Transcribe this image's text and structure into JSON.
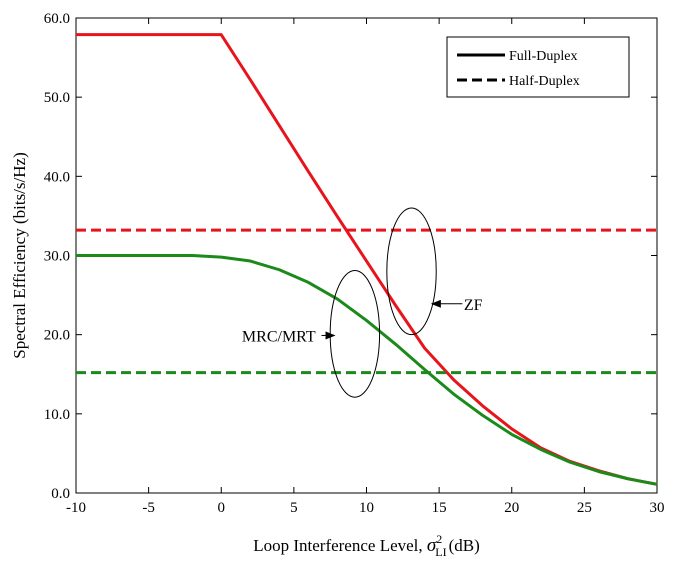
{
  "chart_data": {
    "type": "line",
    "xlabel": "Loop Interference Level,",
    "xlabel_symbol": "σ",
    "xlabel_sup": "2",
    "xlabel_sub": "LI",
    "xlabel_unit": "(dB)",
    "ylabel": "Spectral Efficiency (bits/s/Hz)",
    "xlim": [
      -10,
      30
    ],
    "ylim": [
      0,
      60
    ],
    "xticks": [
      -10,
      -5,
      0,
      5,
      10,
      15,
      20,
      25,
      30
    ],
    "yticks": [
      0,
      10,
      20,
      30,
      40,
      50,
      60
    ],
    "xtick_labels": [
      "-10",
      "-5",
      "0",
      "5",
      "10",
      "15",
      "20",
      "25",
      "30"
    ],
    "ytick_labels": [
      "0.0",
      "10.0",
      "20.0",
      "30.0",
      "40.0",
      "50.0",
      "60.0"
    ],
    "grid": false,
    "legend": {
      "placement": "top-right",
      "entries": [
        {
          "label": "Full-Duplex",
          "style": "solid"
        },
        {
          "label": "Half-Duplex",
          "style": "dashed"
        }
      ]
    },
    "colors": {
      "zf": "#e8141c",
      "mrc": "#1a8a1a"
    },
    "series": [
      {
        "key": "zf_fd",
        "group": "zf",
        "style": "solid",
        "x": [
          -10,
          -5,
          0,
          2,
          4,
          6,
          8,
          10,
          12,
          14,
          16,
          18,
          20,
          22,
          24,
          26,
          28,
          30
        ],
        "y": [
          57.9,
          57.9,
          57.9,
          52.2,
          46.4,
          40.6,
          34.9,
          29.3,
          23.7,
          18.3,
          14.3,
          11.0,
          8.1,
          5.7,
          4.0,
          2.8,
          1.8,
          1.1
        ]
      },
      {
        "key": "mrc_fd",
        "group": "mrc",
        "style": "solid",
        "x": [
          -10,
          -5,
          -2,
          0,
          2,
          4,
          6,
          8,
          10,
          12,
          14,
          16,
          18,
          20,
          22,
          24,
          26,
          28,
          30
        ],
        "y": [
          30.0,
          30.0,
          30.0,
          29.8,
          29.3,
          28.2,
          26.6,
          24.5,
          21.8,
          18.8,
          15.6,
          12.5,
          9.8,
          7.4,
          5.5,
          3.9,
          2.7,
          1.8,
          1.1
        ]
      },
      {
        "key": "zf_hd",
        "group": "zf",
        "style": "dashed",
        "x": [
          -10,
          30
        ],
        "y": [
          33.2,
          33.2
        ]
      },
      {
        "key": "mrc_hd",
        "group": "mrc",
        "style": "dashed",
        "x": [
          -10,
          30
        ],
        "y": [
          15.2,
          15.2
        ]
      }
    ],
    "annotations": [
      {
        "key": "zf",
        "text": "ZF",
        "ellipse_center": [
          13.1,
          28.0
        ],
        "ellipse_radius": [
          1.7,
          8.0
        ],
        "arrow_from": [
          16.6,
          23.9
        ],
        "arrow_to": [
          14.5,
          23.9
        ],
        "text_pos": [
          16.7,
          23.9
        ]
      },
      {
        "key": "mrc",
        "text": "MRC/MRT",
        "ellipse_center": [
          9.2,
          20.1
        ],
        "ellipse_radius": [
          1.7,
          8.0
        ],
        "arrow_from": [
          6.9,
          19.9
        ],
        "arrow_to": [
          7.8,
          19.9
        ],
        "text_pos": [
          6.5,
          19.9
        ]
      }
    ]
  }
}
